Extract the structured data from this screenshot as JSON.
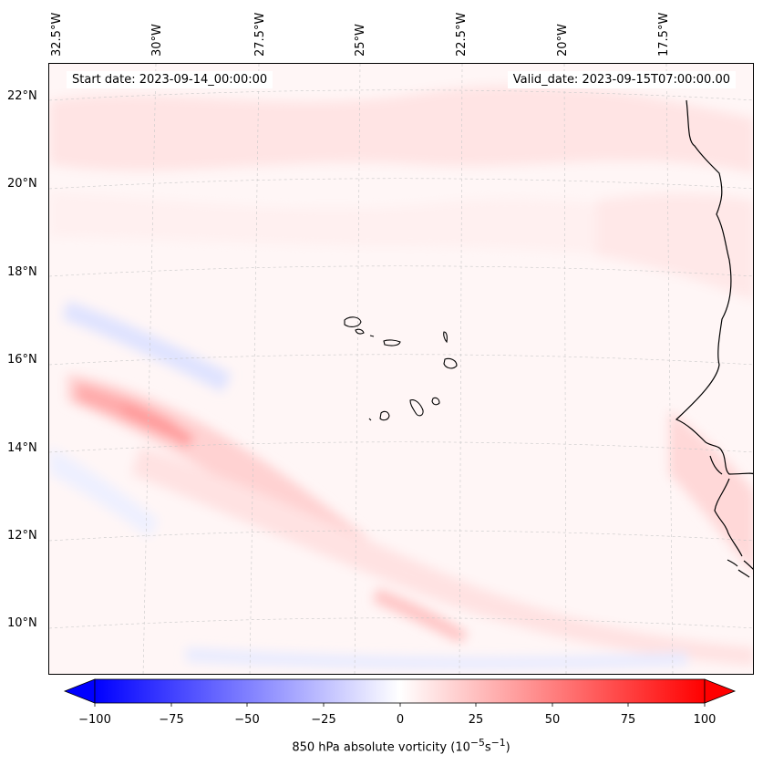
{
  "map": {
    "region": "Eastern tropical Atlantic / Cape Verde",
    "longitude_labels": [
      "32.5°W",
      "30°W",
      "27.5°W",
      "25°W",
      "22.5°W",
      "20°W",
      "17.5°W"
    ],
    "latitude_labels": [
      "22°N",
      "20°N",
      "18°N",
      "16°N",
      "14°N",
      "12°N",
      "10°N"
    ],
    "start_date": "Start date: 2023-09-14_00:00:00",
    "valid_date": "Valid_date: 2023-09-15T07:00:00.00",
    "field": "850 hPa absolute vorticity",
    "colors": {
      "neg_max": "#0000ff",
      "zero": "#ffffff",
      "pos_max": "#ff0000",
      "land_outline": "#000000",
      "gridline": "#b0b0b0"
    }
  },
  "colorbar": {
    "min": -100,
    "max": 100,
    "ticks": [
      "−100",
      "−75",
      "−50",
      "−25",
      "0",
      "25",
      "50",
      "75",
      "100"
    ],
    "label_main": "850 hPa absolute vorticity (10",
    "label_exp1": "−5",
    "label_mid": "s",
    "label_exp2": "−1",
    "label_end": ")"
  }
}
